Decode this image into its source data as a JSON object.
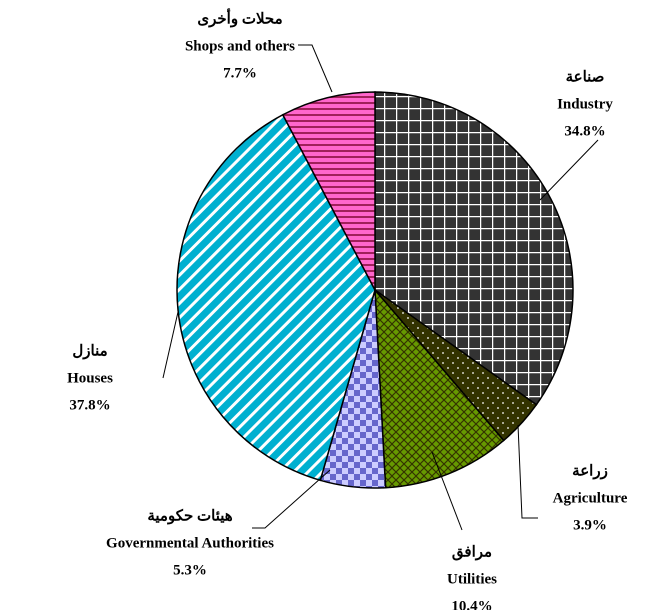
{
  "chart_data": {
    "type": "pie",
    "categories": [
      "Industry",
      "Agriculture",
      "Utilities",
      "Governmental Authorities",
      "Houses",
      "Shops and others"
    ],
    "categories_ar": [
      "صناعة",
      "زراعة",
      "مرافق",
      "هيئات حكومية",
      "منازل",
      "محلات وأخرى"
    ],
    "values": [
      34.8,
      3.9,
      10.4,
      5.3,
      37.8,
      7.7
    ],
    "value_labels": [
      "34.8%",
      "3.9%",
      "10.4%",
      "5.3%",
      "37.8%",
      "7.7%"
    ],
    "colors": [
      "#333333",
      "#333300",
      "#669900",
      "#ccccff",
      "#00b0d0",
      "#ff66cc"
    ]
  }
}
